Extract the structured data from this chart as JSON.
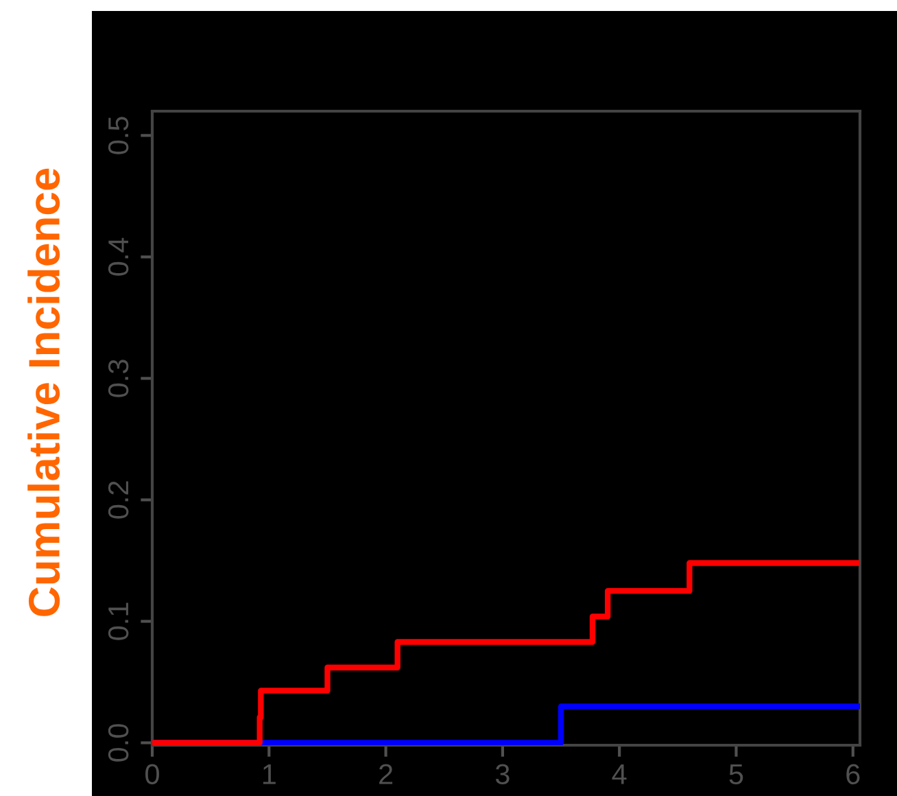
{
  "chart_data": {
    "type": "step",
    "ylabel": "Cumulative Incidence",
    "series": [
      {
        "color": "#ff0000",
        "x": [
          0,
          0.92,
          0.93,
          1.5,
          2.1,
          3.77,
          3.9,
          4.6,
          6.06
        ],
        "values": [
          0,
          0.021,
          0.043,
          0.062,
          0.083,
          0.104,
          0.125,
          0.148,
          0.148
        ]
      },
      {
        "color": "#0000ff",
        "x": [
          0,
          3.5,
          6.06
        ],
        "values": [
          0,
          0.03,
          0.03
        ]
      }
    ],
    "xlim": [
      0,
      6.06
    ],
    "ylim": [
      -0.002,
      0.52
    ],
    "xticks": [
      0,
      1,
      2,
      3,
      4,
      5,
      6
    ],
    "yticks": [
      {
        "value": 0,
        "label": "0.0"
      },
      0.1,
      0.2,
      0.3,
      0.4,
      0.5
    ],
    "grid": false,
    "legend": false
  }
}
